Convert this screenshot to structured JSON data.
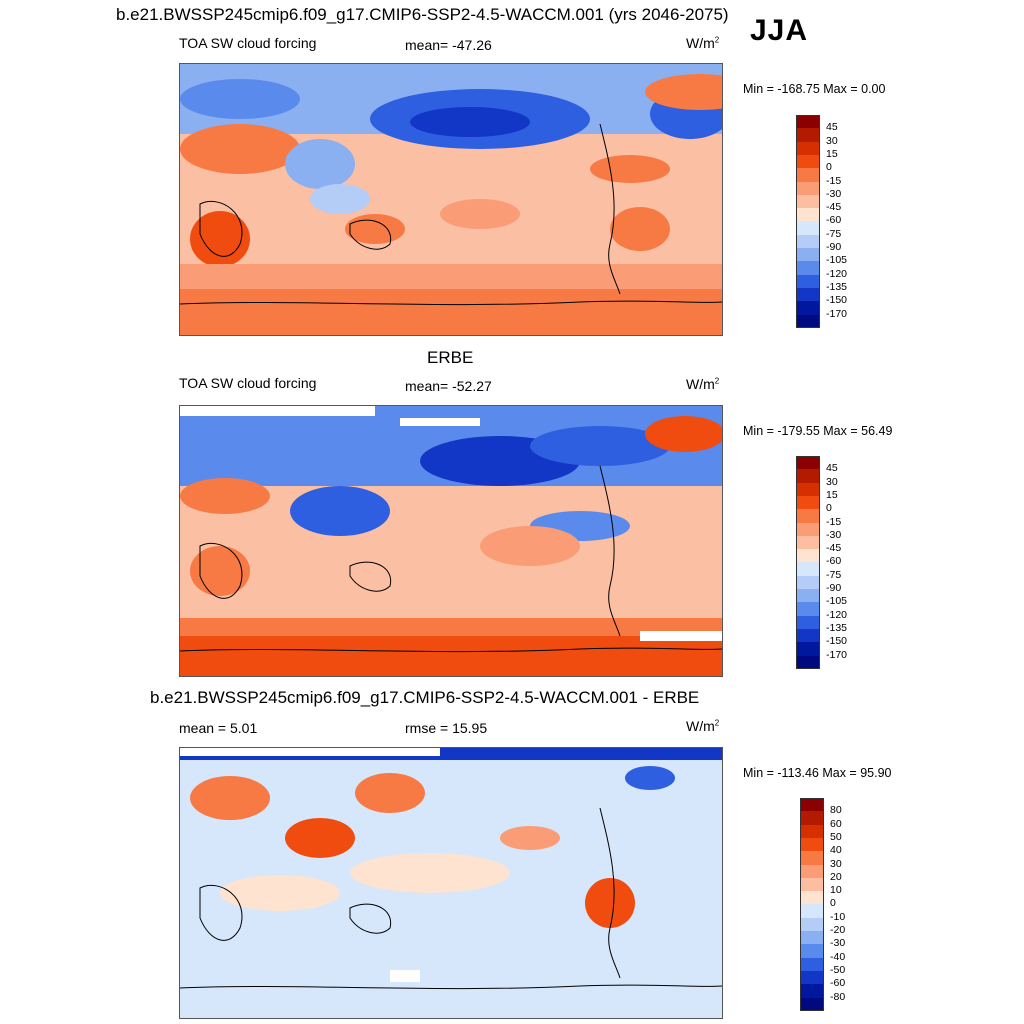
{
  "header": {
    "title": "b.e21.BWSSP245cmip6.f09_g17.CMIP6-SSP2-4.5-WACCM.001 (yrs 2046-2075)",
    "season": "JJA"
  },
  "panels": [
    {
      "id": "model",
      "heading": "",
      "left_label": "TOA SW cloud forcing",
      "center_label": "mean= -47.26",
      "units": "W/m",
      "units_exp": "2",
      "minmax": "Min = -168.75 Max =   0.00"
    },
    {
      "id": "obs",
      "heading": "ERBE",
      "left_label": "TOA SW cloud forcing",
      "center_label": "mean= -52.27",
      "units": "W/m",
      "units_exp": "2",
      "minmax": "Min = -179.55 Max =  56.49"
    },
    {
      "id": "diff",
      "heading": "b.e21.BWSSP245cmip6.f09_g17.CMIP6-SSP2-4.5-WACCM.001 - ERBE",
      "left_label": "mean =   5.01",
      "center_label": "rmse =  15.95",
      "units": "W/m",
      "units_exp": "2",
      "minmax": "Min = -113.46 Max =  95.90"
    }
  ],
  "colorbars": {
    "forcing": {
      "levels": [
        "45",
        "30",
        "15",
        "0",
        "-15",
        "-30",
        "-45",
        "-60",
        "-75",
        "-90",
        "-105",
        "-120",
        "-135",
        "-150",
        "-170"
      ],
      "colors": [
        "#8b0000",
        "#b31a00",
        "#d63000",
        "#f04c10",
        "#f77a45",
        "#fa9c75",
        "#fcbda0",
        "#fde3d0",
        "#d6e6fb",
        "#b4cdf7",
        "#8ab0f2",
        "#5a8aec",
        "#2e5fe0",
        "#1236c6",
        "#00189e",
        "#000a80"
      ]
    },
    "difference": {
      "levels": [
        "80",
        "60",
        "50",
        "40",
        "30",
        "20",
        "10",
        "0",
        "-10",
        "-20",
        "-30",
        "-40",
        "-50",
        "-60",
        "-80"
      ],
      "colors": [
        "#8b0000",
        "#b31a00",
        "#d63000",
        "#f04c10",
        "#f77a45",
        "#fa9c75",
        "#fcbda0",
        "#fde3d0",
        "#d6e6fb",
        "#b4cdf7",
        "#8ab0f2",
        "#5a8aec",
        "#2e5fe0",
        "#1236c6",
        "#00189e",
        "#000a80"
      ]
    }
  },
  "chart_data": [
    {
      "type": "heatmap",
      "title": "TOA SW cloud forcing",
      "mean": -47.26,
      "units": "W/m2",
      "min": -168.75,
      "max": 0.0,
      "contour_levels": [
        -170,
        -150,
        -135,
        -120,
        -105,
        -90,
        -75,
        -60,
        -45,
        -30,
        -15,
        0,
        15,
        30,
        45
      ],
      "grid": false,
      "legend_position": "right"
    },
    {
      "type": "heatmap",
      "title": "ERBE",
      "mean": -52.27,
      "units": "W/m2",
      "min": -179.55,
      "max": 56.49,
      "contour_levels": [
        -170,
        -150,
        -135,
        -120,
        -105,
        -90,
        -75,
        -60,
        -45,
        -30,
        -15,
        0,
        15,
        30,
        45
      ],
      "grid": false,
      "legend_position": "right"
    },
    {
      "type": "heatmap",
      "title": "b.e21.BWSSP245cmip6.f09_g17.CMIP6-SSP2-4.5-WACCM.001 - ERBE",
      "mean": 5.01,
      "rmse": 15.95,
      "units": "W/m2",
      "min": -113.46,
      "max": 95.9,
      "contour_levels": [
        -80,
        -60,
        -50,
        -40,
        -30,
        -20,
        -10,
        0,
        10,
        20,
        30,
        40,
        50,
        60,
        80
      ],
      "grid": false,
      "legend_position": "right"
    }
  ]
}
